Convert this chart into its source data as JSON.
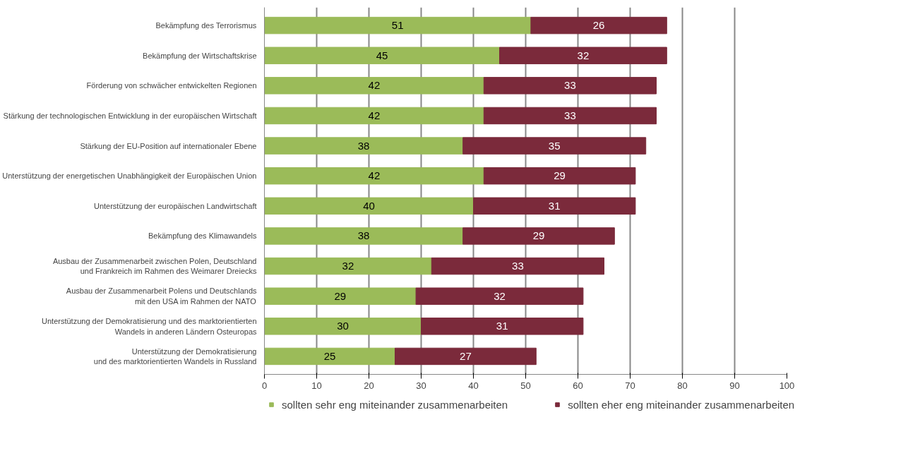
{
  "chart_data": {
    "type": "bar",
    "orientation": "horizontal",
    "stacked": true,
    "categories": [
      "Bekämpfung des Terrorismus",
      "Bekämpfung der Wirtschaftskrise",
      "Förderung von schwächer entwickelten Regionen",
      "Stärkung der technologischen Entwicklung in der europäischen Wirtschaft",
      "Stärkung der EU-Position auf internationaler Ebene",
      "Unterstützung der energetischen Unabhängigkeit der Europäischen Union",
      "Unterstützung der europäischen Landwirtschaft",
      "Bekämpfung des Klimawandels",
      "Ausbau der Zusammenarbeit zwischen Polen, Deutschland\nund Frankreich im Rahmen des Weimarer Dreiecks",
      "Ausbau der Zusammenarbeit Polens und Deutschlands\nmit den USA im Rahmen der NATO",
      "Unterstützung der Demokratisierung und des marktorientierten\nWandels in anderen Ländern Osteuropas",
      "Unterstützung der Demokratisierung\nund des marktorientierten Wandels in Russland"
    ],
    "series": [
      {
        "name": "sollten sehr eng miteinander zusammenarbeiten",
        "color": "#9bbb59",
        "values": [
          51,
          45,
          42,
          42,
          38,
          42,
          40,
          38,
          32,
          29,
          30,
          25
        ]
      },
      {
        "name": "sollten eher eng miteinander zusammenarbeiten",
        "color": "#7b2a3b",
        "values": [
          26,
          32,
          33,
          33,
          35,
          29,
          31,
          29,
          33,
          32,
          31,
          27
        ]
      }
    ],
    "xlim": [
      0,
      100
    ],
    "xticks": [
      0,
      10,
      20,
      30,
      40,
      50,
      60,
      70,
      80,
      90,
      100
    ],
    "grid": "x",
    "data_labels": true,
    "legend": "bottom"
  }
}
